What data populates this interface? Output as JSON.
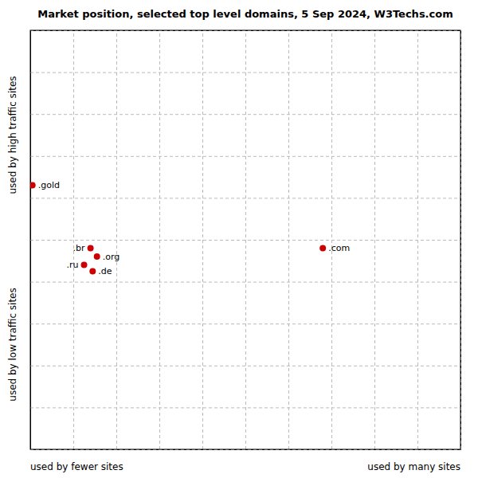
{
  "chart_data": {
    "type": "scatter",
    "title": "Market position, selected top level domains, 5 Sep 2024, W3Techs.com",
    "xlabel_left": "used by fewer sites",
    "xlabel_right": "used by many sites",
    "ylabel_top": "used by high traffic sites",
    "ylabel_bottom": "used by low traffic sites",
    "labels": [
      ".gold",
      ".com",
      ".br",
      ".org",
      ".ru",
      ".de"
    ],
    "x": [
      0.5,
      68.0,
      14.0,
      15.5,
      12.5,
      14.5
    ],
    "values": [
      37.0,
      52.0,
      52.0,
      54.0,
      56.0,
      57.5
    ],
    "color": "#cc0000",
    "xlim": [
      0,
      100
    ],
    "ylim": [
      100,
      0
    ],
    "xticks": [
      0,
      10,
      20,
      30,
      40,
      50,
      60,
      70,
      80,
      90,
      100
    ],
    "yticks": [
      0,
      10,
      20,
      30,
      40,
      50,
      60,
      70,
      80,
      90,
      100
    ],
    "grid": true,
    "tick_labels": false
  }
}
